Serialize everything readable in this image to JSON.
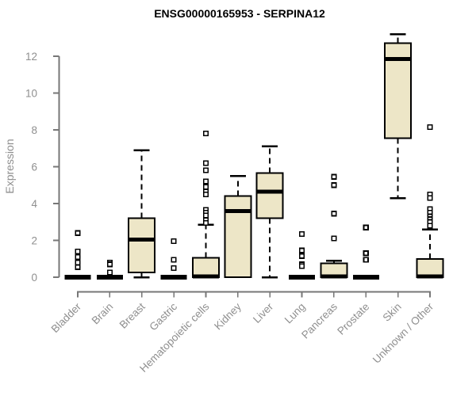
{
  "chart_data": {
    "type": "boxplot",
    "title": "ENSG00000165953 - SERPINA12",
    "ylabel": "Expression",
    "xlabel": "",
    "yticks": [
      0,
      2,
      4,
      6,
      8,
      10,
      12
    ],
    "ylim": [
      0,
      13.5
    ],
    "grid": false,
    "legend": "none",
    "categories": [
      "Bladder",
      "Brain",
      "Breast",
      "Gastric",
      "Hematopoietic cells",
      "Kidney",
      "Liver",
      "Lung",
      "Pancreas",
      "Prostate",
      "Skin",
      "Unknown / Other"
    ],
    "series": [
      {
        "category": "Bladder",
        "low": 0,
        "q1": 0,
        "median": 0,
        "q3": 0,
        "high": 0,
        "outliers": [
          2.4,
          1.4,
          1.1,
          0.8,
          0.55
        ]
      },
      {
        "category": "Brain",
        "low": 0,
        "q1": 0,
        "median": 0,
        "q3": 0,
        "high": 0,
        "outliers": [
          0.8,
          0.7,
          0.25
        ]
      },
      {
        "category": "Breast",
        "low": 0,
        "q1": 0.25,
        "median": 2.05,
        "q3": 3.2,
        "high": 6.9,
        "outliers": []
      },
      {
        "category": "Gastric",
        "low": 0,
        "q1": 0,
        "median": 0,
        "q3": 0,
        "high": 0,
        "outliers": [
          1.95,
          0.95,
          0.5
        ]
      },
      {
        "category": "Hematopoietic cells",
        "low": 0,
        "q1": 0,
        "median": 0.05,
        "q3": 1.05,
        "high": 2.85,
        "outliers": [
          7.8,
          6.2,
          5.8,
          5.2,
          4.9,
          4.65,
          4.5,
          3.65,
          3.5,
          3.35,
          3.1,
          2.95
        ]
      },
      {
        "category": "Kidney",
        "low": 0,
        "q1": 0,
        "median": 3.6,
        "q3": 4.4,
        "high": 5.5,
        "outliers": []
      },
      {
        "category": "Liver",
        "low": 0,
        "q1": 3.2,
        "median": 4.65,
        "q3": 5.65,
        "high": 7.1,
        "outliers": []
      },
      {
        "category": "Lung",
        "low": 0,
        "q1": 0,
        "median": 0,
        "q3": 0,
        "high": 0,
        "outliers": [
          2.35,
          1.45,
          1.15,
          0.7,
          0.6
        ]
      },
      {
        "category": "Pancreas",
        "low": 0,
        "q1": 0,
        "median": 0.05,
        "q3": 0.75,
        "high": 0.9,
        "outliers": [
          5.45,
          5.0,
          3.45,
          2.1
        ]
      },
      {
        "category": "Prostate",
        "low": 0,
        "q1": 0,
        "median": 0,
        "q3": 0,
        "high": 0,
        "outliers": [
          2.7,
          1.3,
          0.95
        ]
      },
      {
        "category": "Skin",
        "low": 4.3,
        "q1": 7.55,
        "median": 11.85,
        "q3": 12.7,
        "high": 13.2,
        "outliers": []
      },
      {
        "category": "Unknown / Other",
        "low": 0,
        "q1": 0,
        "median": 0.05,
        "q3": 1.0,
        "high": 2.6,
        "outliers": [
          8.15,
          4.5,
          4.3,
          3.7,
          3.5,
          3.3,
          3.15,
          3.0,
          2.8
        ]
      }
    ],
    "colors": {
      "box_fill": "#ede6c7",
      "box_stroke": "#000000",
      "median": "#000000",
      "axis": "#777777",
      "tick_text": "#8f8f8f",
      "title_text": "#000000",
      "background": "#ffffff"
    }
  }
}
